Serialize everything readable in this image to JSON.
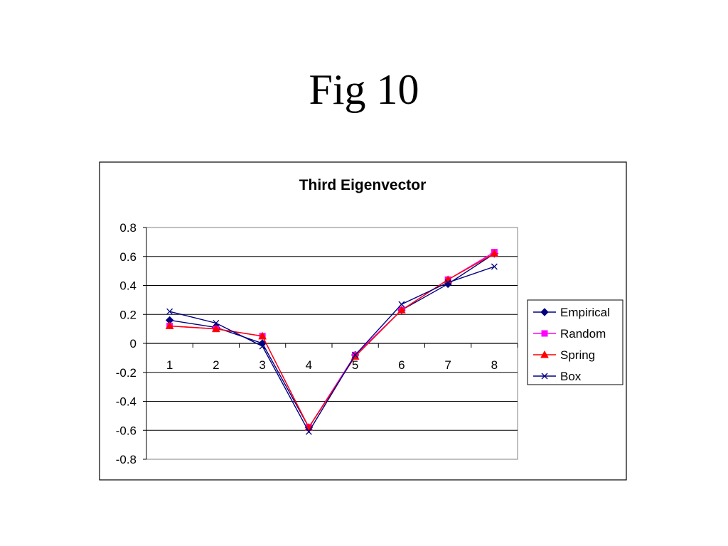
{
  "slide": {
    "title": "Fig 10"
  },
  "chart_data": {
    "type": "line",
    "title": "Third Eigenvector",
    "xlabel": "",
    "ylabel": "",
    "categories": [
      "1",
      "2",
      "3",
      "4",
      "5",
      "6",
      "7",
      "8"
    ],
    "ylim": [
      -0.8,
      0.8
    ],
    "yticks": [
      "0.8",
      "0.6",
      "0.4",
      "0.2",
      "0",
      "-0.2",
      "-0.4",
      "-0.6",
      "-0.8"
    ],
    "grid": true,
    "legend_position": "right",
    "series": [
      {
        "name": "Empirical",
        "color": "#000080",
        "marker": "diamond",
        "values": [
          0.16,
          0.11,
          0.0,
          -0.58,
          -0.08,
          0.23,
          0.41,
          0.62
        ]
      },
      {
        "name": "Random",
        "color": "#ff00ff",
        "marker": "square",
        "values": [
          0.12,
          0.1,
          0.05,
          -0.58,
          -0.08,
          0.23,
          0.44,
          0.63
        ]
      },
      {
        "name": "Spring",
        "color": "#ff0000",
        "marker": "triangle",
        "values": [
          0.12,
          0.1,
          0.05,
          -0.58,
          -0.09,
          0.23,
          0.44,
          0.62
        ]
      },
      {
        "name": "Box",
        "color": "#000080",
        "marker": "x",
        "values": [
          0.22,
          0.14,
          -0.02,
          -0.61,
          -0.08,
          0.27,
          0.42,
          0.53
        ]
      }
    ]
  }
}
